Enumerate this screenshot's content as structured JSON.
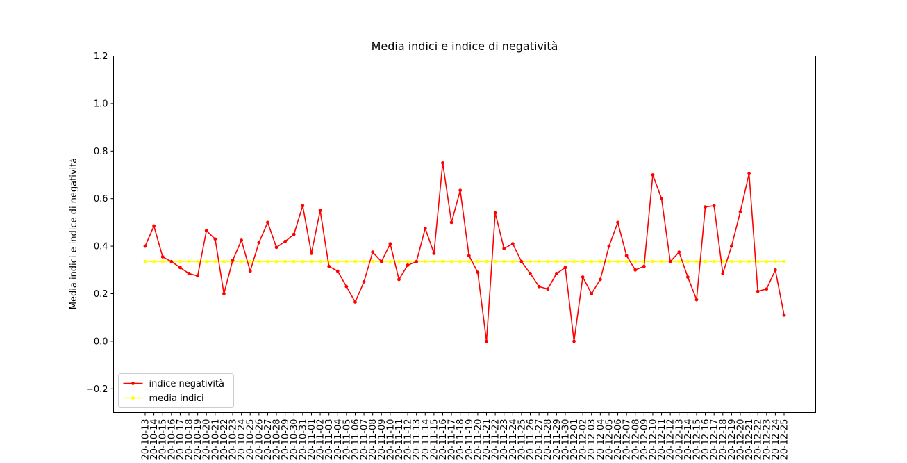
{
  "chart_data": {
    "type": "line",
    "title": "Media indici e indice di negatività",
    "xlabel": "",
    "ylabel": "Media indici e indice di negatività",
    "ylim": [
      -0.3,
      1.2
    ],
    "yticks": [
      -0.2,
      0.0,
      0.2,
      0.4,
      0.6,
      0.8,
      1.0,
      1.2
    ],
    "ytick_labels": [
      "−0.2",
      "0.0",
      "0.2",
      "0.4",
      "0.6",
      "0.8",
      "1.0",
      "1.2"
    ],
    "x": [
      "20-10-13",
      "20-10-14",
      "20-10-15",
      "20-10-16",
      "20-10-17",
      "20-10-18",
      "20-10-19",
      "20-10-20",
      "20-10-21",
      "20-10-22",
      "20-10-23",
      "20-10-24",
      "20-10-25",
      "20-10-26",
      "20-10-27",
      "20-10-28",
      "20-10-29",
      "20-10-30",
      "20-10-31",
      "20-11-01",
      "20-11-02",
      "20-11-03",
      "20-11-04",
      "20-11-05",
      "20-11-06",
      "20-11-07",
      "20-11-08",
      "20-11-09",
      "20-11-10",
      "20-11-11",
      "20-11-12",
      "20-11-13",
      "20-11-14",
      "20-11-15",
      "20-11-16",
      "20-11-17",
      "20-11-18",
      "20-11-19",
      "20-11-20",
      "20-11-21",
      "20-11-22",
      "20-11-23",
      "20-11-24",
      "20-11-25",
      "20-11-26",
      "20-11-27",
      "20-11-28",
      "20-11-29",
      "20-11-30",
      "20-12-01",
      "20-12-02",
      "20-12-03",
      "20-12-04",
      "20-12-05",
      "20-12-06",
      "20-12-07",
      "20-12-08",
      "20-12-09",
      "20-12-10",
      "20-12-11",
      "20-12-12",
      "20-12-13",
      "20-12-14",
      "20-12-15",
      "20-12-16",
      "20-12-17",
      "20-12-18",
      "20-12-19",
      "20-12-20",
      "20-12-21",
      "20-12-22",
      "20-12-23",
      "20-12-24",
      "20-12-25"
    ],
    "series": [
      {
        "name": "indice negatività",
        "color": "#ff0000",
        "values": [
          0.4,
          0.485,
          0.355,
          0.335,
          0.31,
          0.285,
          0.275,
          0.465,
          0.43,
          0.2,
          0.34,
          0.425,
          0.295,
          0.415,
          0.5,
          0.395,
          0.42,
          0.45,
          0.57,
          0.37,
          0.55,
          0.315,
          0.295,
          0.23,
          0.165,
          0.25,
          0.375,
          0.335,
          0.41,
          0.26,
          0.32,
          0.335,
          0.475,
          0.37,
          0.75,
          0.5,
          0.635,
          0.36,
          0.29,
          0.0,
          0.54,
          0.39,
          0.41,
          0.335,
          0.285,
          0.23,
          0.22,
          0.285,
          0.31,
          0.0,
          0.27,
          0.2,
          0.26,
          0.4,
          0.5,
          0.36,
          0.3,
          0.315,
          0.7,
          0.6,
          0.335,
          0.375,
          0.27,
          0.175,
          0.565,
          0.57,
          0.285,
          0.4,
          0.545,
          0.705,
          0.21,
          0.22,
          0.3,
          0.11
        ]
      },
      {
        "name": "media indici",
        "color": "#ffff00",
        "values": [
          0.335,
          0.335,
          0.335,
          0.335,
          0.335,
          0.335,
          0.335,
          0.335,
          0.335,
          0.335,
          0.335,
          0.335,
          0.335,
          0.335,
          0.335,
          0.335,
          0.335,
          0.335,
          0.335,
          0.335,
          0.335,
          0.335,
          0.335,
          0.335,
          0.335,
          0.335,
          0.335,
          0.335,
          0.335,
          0.335,
          0.335,
          0.335,
          0.335,
          0.335,
          0.335,
          0.335,
          0.335,
          0.335,
          0.335,
          0.335,
          0.335,
          0.335,
          0.335,
          0.335,
          0.335,
          0.335,
          0.335,
          0.335,
          0.335,
          0.335,
          0.335,
          0.335,
          0.335,
          0.335,
          0.335,
          0.335,
          0.335,
          0.335,
          0.335,
          0.335,
          0.335,
          0.335,
          0.335,
          0.335,
          0.335,
          0.335,
          0.335,
          0.335,
          0.335,
          0.335,
          0.335,
          0.335,
          0.335,
          0.335
        ]
      }
    ],
    "legend": "lower-left",
    "grid": false
  }
}
